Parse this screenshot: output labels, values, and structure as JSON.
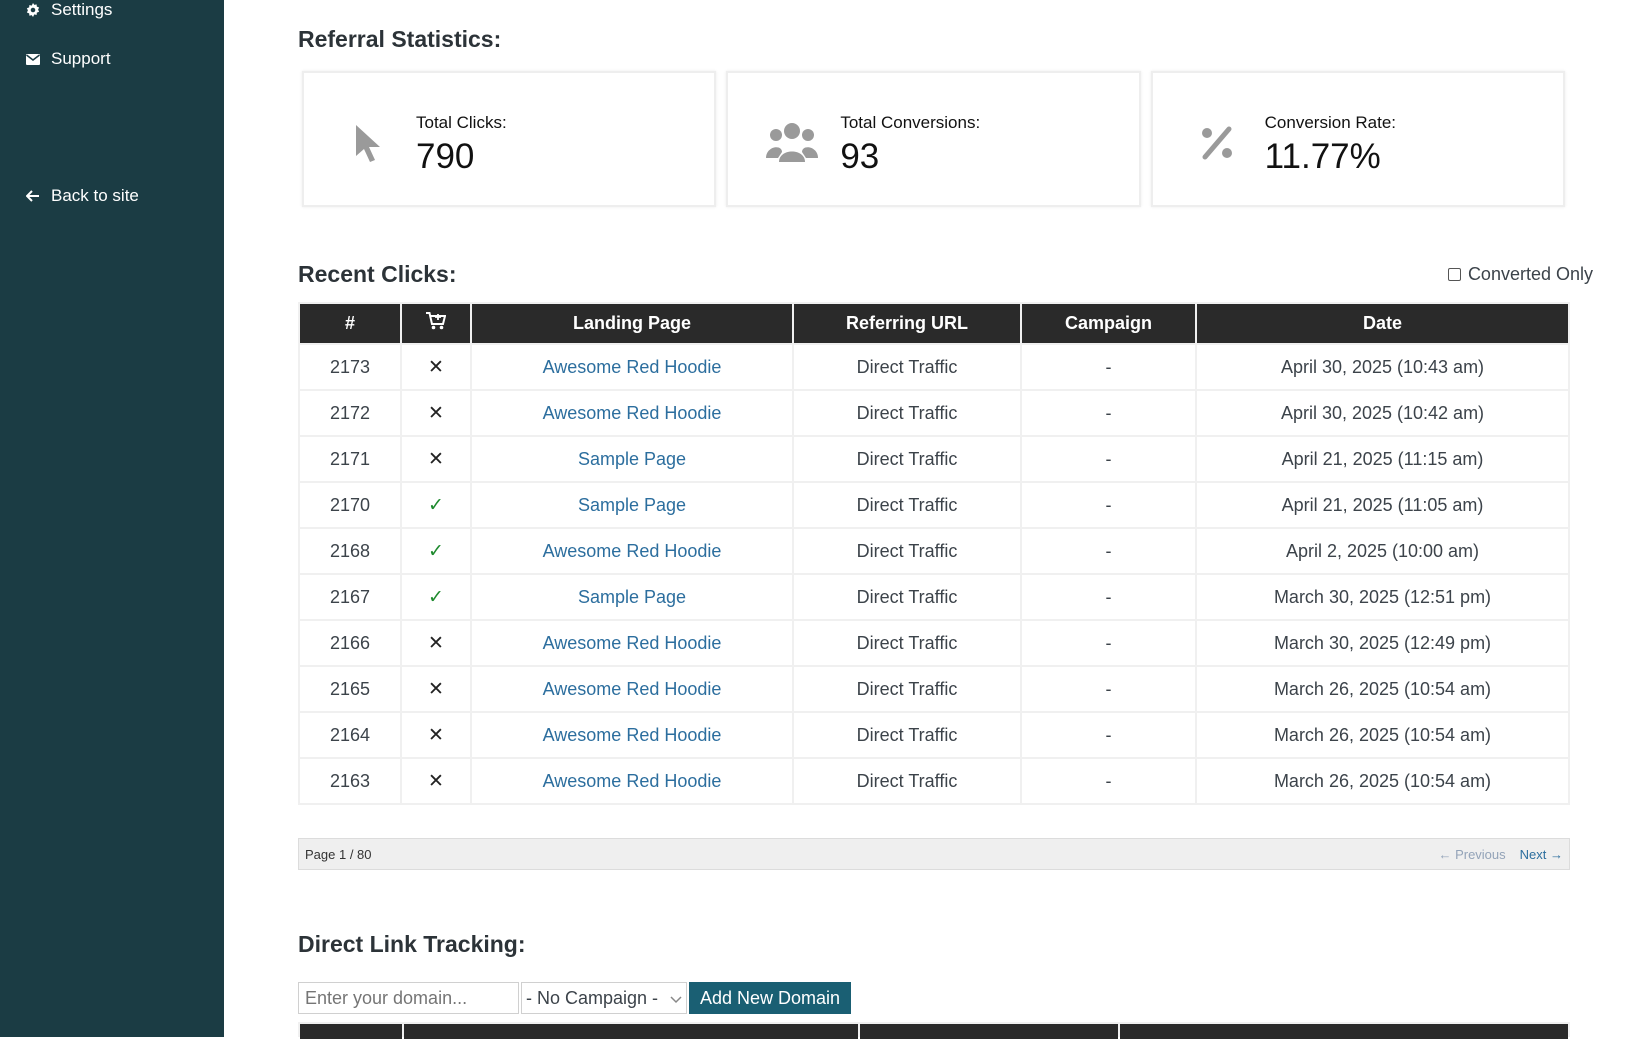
{
  "sidebar": {
    "items": [
      {
        "label": "Settings",
        "icon": "gear-icon"
      },
      {
        "label": "Support",
        "icon": "envelope-icon"
      },
      {
        "label": "Back to site",
        "icon": "arrow-left-icon"
      }
    ]
  },
  "referral": {
    "title": "Referral Statistics:",
    "cards": [
      {
        "label": "Total Clicks:",
        "value": "790",
        "icon": "cursor-icon"
      },
      {
        "label": "Total Conversions:",
        "value": "93",
        "icon": "users-icon"
      },
      {
        "label": "Conversion Rate:",
        "value": "11.77%",
        "icon": "percent-icon"
      }
    ]
  },
  "recent": {
    "title": "Recent Clicks:",
    "converted_only_label": "Converted Only",
    "headers": [
      "#",
      "",
      "Landing Page",
      "Referring URL",
      "Campaign",
      "Date"
    ],
    "rows": [
      {
        "id": "2173",
        "converted": false,
        "landing": "Awesome Red Hoodie",
        "referrer": "Direct Traffic",
        "campaign": "-",
        "date": "April 30, 2025 (10:43 am)"
      },
      {
        "id": "2172",
        "converted": false,
        "landing": "Awesome Red Hoodie",
        "referrer": "Direct Traffic",
        "campaign": "-",
        "date": "April 30, 2025 (10:42 am)"
      },
      {
        "id": "2171",
        "converted": false,
        "landing": "Sample Page",
        "referrer": "Direct Traffic",
        "campaign": "-",
        "date": "April 21, 2025 (11:15 am)"
      },
      {
        "id": "2170",
        "converted": true,
        "landing": "Sample Page",
        "referrer": "Direct Traffic",
        "campaign": "-",
        "date": "April 21, 2025 (11:05 am)"
      },
      {
        "id": "2168",
        "converted": true,
        "landing": "Awesome Red Hoodie",
        "referrer": "Direct Traffic",
        "campaign": "-",
        "date": "April 2, 2025 (10:00 am)"
      },
      {
        "id": "2167",
        "converted": true,
        "landing": "Sample Page",
        "referrer": "Direct Traffic",
        "campaign": "-",
        "date": "March 30, 2025 (12:51 pm)"
      },
      {
        "id": "2166",
        "converted": false,
        "landing": "Awesome Red Hoodie",
        "referrer": "Direct Traffic",
        "campaign": "-",
        "date": "March 30, 2025 (12:49 pm)"
      },
      {
        "id": "2165",
        "converted": false,
        "landing": "Awesome Red Hoodie",
        "referrer": "Direct Traffic",
        "campaign": "-",
        "date": "March 26, 2025 (10:54 am)"
      },
      {
        "id": "2164",
        "converted": false,
        "landing": "Awesome Red Hoodie",
        "referrer": "Direct Traffic",
        "campaign": "-",
        "date": "March 26, 2025 (10:54 am)"
      },
      {
        "id": "2163",
        "converted": false,
        "landing": "Awesome Red Hoodie",
        "referrer": "Direct Traffic",
        "campaign": "-",
        "date": "March 26, 2025 (10:54 am)"
      }
    ],
    "pager": {
      "text": "Page 1 / 80",
      "prev": "Previous",
      "next": "Next"
    }
  },
  "direct": {
    "title": "Direct Link Tracking:",
    "domain_placeholder": "Enter your domain...",
    "campaign_value": "- No Campaign -",
    "add_button": "Add New Domain"
  },
  "colors": {
    "sidebar_bg": "#1b3c44",
    "header_bg": "#2a2a2a",
    "link": "#2c6e9e",
    "check": "#1e8a2e",
    "button": "#1a5f73"
  }
}
